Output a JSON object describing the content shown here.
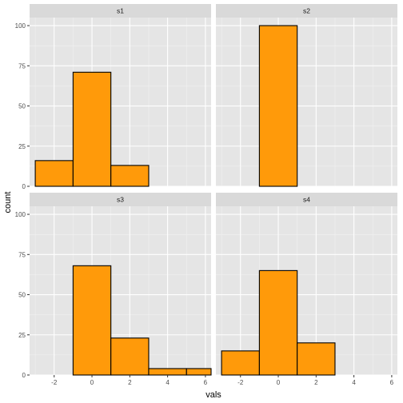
{
  "chart_data": {
    "type": "bar",
    "subtype": "faceted-histogram",
    "xlabel": "vals",
    "ylabel": "count",
    "xlim": [
      -3.3,
      6.3
    ],
    "ylim": [
      0,
      105
    ],
    "x_ticks": [
      -2,
      0,
      2,
      4,
      6
    ],
    "x_tick_labels": [
      "-2",
      "0",
      "2",
      "4",
      "6"
    ],
    "y_ticks": [
      0,
      25,
      50,
      75,
      100
    ],
    "y_tick_labels": [
      "0",
      "25",
      "50",
      "75",
      "100"
    ],
    "bin_edges": [
      -3,
      -1,
      1,
      3,
      5,
      7
    ],
    "grid": true,
    "bar_fill": "#ff9a0a",
    "bar_outline": "#000000",
    "panel_background": "#e5e5e5",
    "strip_background": "#d9d9d9",
    "facets": [
      {
        "label": "s1",
        "counts": [
          16,
          71,
          13,
          0,
          0
        ]
      },
      {
        "label": "s2",
        "counts": [
          0,
          100,
          0,
          0,
          0
        ]
      },
      {
        "label": "s3",
        "counts": [
          0,
          68,
          23,
          4,
          4
        ]
      },
      {
        "label": "s4",
        "counts": [
          15,
          65,
          20,
          0,
          0
        ]
      }
    ]
  }
}
